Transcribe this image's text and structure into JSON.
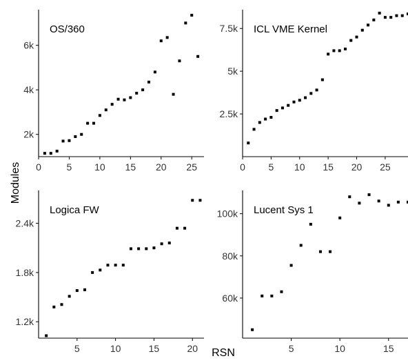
{
  "chart_data": {
    "type": "scatter",
    "xlabel": "RSN",
    "ylabel": "Modules",
    "grid": false,
    "point_color": "#000000",
    "axis_color": "#000000",
    "panels": [
      {
        "title": "OS/360",
        "xlim": [
          0,
          27
        ],
        "ylim": [
          1000,
          7600
        ],
        "xticks": [
          0,
          5,
          10,
          15,
          20,
          25
        ],
        "xtick_labels": [
          "0",
          "5",
          "10",
          "15",
          "20",
          "25"
        ],
        "yticks": [
          2000,
          4000,
          6000
        ],
        "ytick_labels": [
          "2k",
          "4k",
          "6k"
        ],
        "x": [
          1,
          2,
          3,
          4,
          5,
          6,
          7,
          8,
          9,
          10,
          11,
          12,
          13,
          14,
          15,
          16,
          17,
          18,
          19,
          20,
          21,
          22,
          23,
          24,
          25,
          26
        ],
        "y": [
          1150,
          1150,
          1250,
          1700,
          1720,
          1900,
          2000,
          2500,
          2500,
          2850,
          3100,
          3350,
          3580,
          3550,
          3650,
          3850,
          4000,
          4350,
          4800,
          6200,
          6350,
          3800,
          5300,
          7000,
          7350,
          5500
        ]
      },
      {
        "title": "ICL VME Kernel",
        "xlim": [
          0,
          29
        ],
        "ylim": [
          0,
          8600
        ],
        "xticks": [
          0,
          5,
          10,
          15,
          20,
          25
        ],
        "xtick_labels": [
          "0",
          "5",
          "10",
          "15",
          "20",
          "25"
        ],
        "yticks": [
          2500,
          5000,
          7500
        ],
        "ytick_labels": [
          "2.5k",
          "5k",
          "7.5k"
        ],
        "x": [
          1,
          2,
          3,
          4,
          5,
          6,
          7,
          8,
          9,
          10,
          11,
          12,
          13,
          14,
          15,
          16,
          17,
          18,
          19,
          20,
          21,
          22,
          23,
          24,
          25,
          26,
          27,
          28,
          29
        ],
        "y": [
          800,
          1600,
          2000,
          2200,
          2300,
          2700,
          2850,
          3000,
          3200,
          3300,
          3450,
          3700,
          3900,
          4500,
          6000,
          6200,
          6200,
          6300,
          6800,
          7000,
          7400,
          7700,
          8000,
          8400,
          8150,
          8150,
          8250,
          8250,
          8350
        ]
      },
      {
        "title": "Logica FW",
        "xlim": [
          0,
          21.5
        ],
        "ylim": [
          1000,
          2800
        ],
        "xticks": [
          5,
          10,
          15,
          20
        ],
        "xtick_labels": [
          "5",
          "10",
          "15",
          "20"
        ],
        "yticks": [
          1200,
          1800,
          2400
        ],
        "ytick_labels": [
          "1.2k",
          "1.8k",
          "2.4k"
        ],
        "x": [
          1,
          2,
          3,
          4,
          5,
          6,
          7,
          8,
          9,
          10,
          11,
          12,
          13,
          14,
          15,
          16,
          17,
          18,
          19,
          20,
          21
        ],
        "y": [
          1030,
          1380,
          1410,
          1510,
          1580,
          1590,
          1800,
          1830,
          1890,
          1890,
          1890,
          2090,
          2090,
          2090,
          2100,
          2150,
          2160,
          2340,
          2340,
          2680,
          2680
        ]
      },
      {
        "title": "Lucent Sys 1",
        "xlim": [
          0,
          17
        ],
        "ylim": [
          41000,
          111000
        ],
        "xticks": [
          5,
          10,
          15
        ],
        "xtick_labels": [
          "5",
          "10",
          "15"
        ],
        "yticks": [
          60000,
          80000,
          100000
        ],
        "ytick_labels": [
          "60k",
          "80k",
          "100k"
        ],
        "x": [
          1,
          2,
          3,
          4,
          5,
          6,
          7,
          8,
          9,
          10,
          11,
          12,
          13,
          14,
          15,
          16,
          17
        ],
        "y": [
          45000,
          61000,
          61000,
          63000,
          75500,
          85000,
          95000,
          82000,
          82000,
          98000,
          108000,
          105000,
          109000,
          106000,
          104000,
          105500,
          105500
        ]
      }
    ]
  }
}
